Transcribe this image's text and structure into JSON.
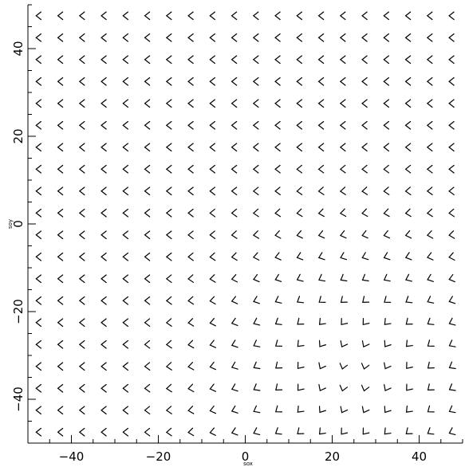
{
  "chart_data": {
    "type": "vector-field",
    "xlabel": "sox",
    "ylabel": "soy",
    "xlim": [
      -50,
      50
    ],
    "ylim": [
      -50,
      50
    ],
    "x_ticks": [
      -40,
      -20,
      0,
      20,
      40
    ],
    "y_ticks": [
      -40,
      -20,
      0,
      20,
      40
    ],
    "x_tick_labels": [
      "−40",
      "−20",
      "0",
      "20",
      "40"
    ],
    "y_tick_labels": [
      "−40",
      "−20",
      "0",
      "20",
      "40"
    ],
    "grid": false,
    "grid_x": [
      -47.5,
      -42.5,
      -37.5,
      -32.5,
      -27.5,
      -22.5,
      -17.5,
      -12.5,
      -7.5,
      -2.5,
      2.5,
      7.5,
      12.5,
      17.5,
      22.5,
      27.5,
      32.5,
      37.5,
      42.5,
      47.5
    ],
    "grid_y": [
      -47.5,
      -42.5,
      -37.5,
      -32.5,
      -27.5,
      -22.5,
      -17.5,
      -12.5,
      -7.5,
      -2.5,
      2.5,
      7.5,
      12.5,
      17.5,
      22.5,
      27.5,
      32.5,
      37.5,
      42.5,
      47.5
    ],
    "field": {
      "description": "arrowhead direction points roughly toward -x, turning downward (+y rotation) as x increases and y decreases",
      "base_direction_deg": 180,
      "rotation_center": [
        25,
        -35
      ],
      "max_rotation_deg": 90,
      "falloff_distance": 55
    },
    "marker": "arrowhead",
    "color": "#000000"
  }
}
